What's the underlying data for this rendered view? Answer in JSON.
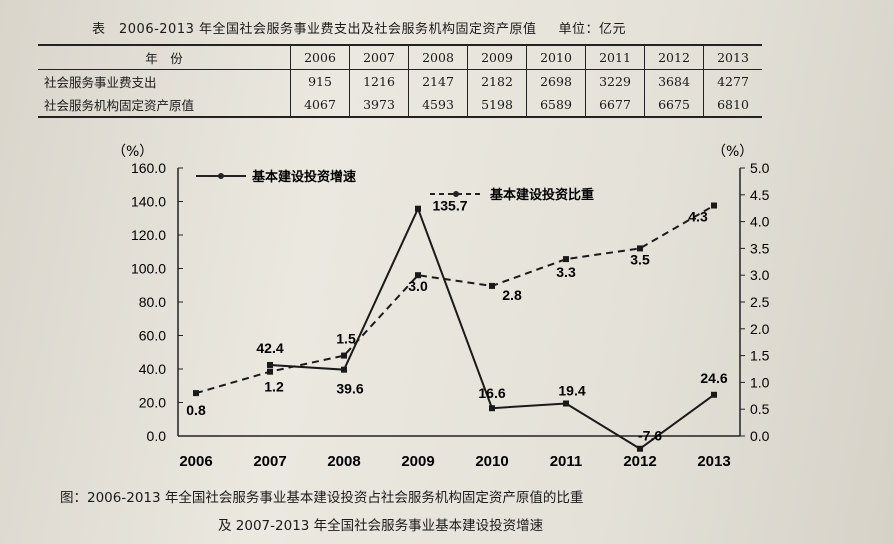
{
  "table": {
    "title": "表　2006-2013 年全国社会服务事业费支出及社会服务机构固定资产原值",
    "unit": "单位：亿元",
    "header_label": "年　份",
    "years": [
      "2006",
      "2007",
      "2008",
      "2009",
      "2010",
      "2011",
      "2012",
      "2013"
    ],
    "rows": [
      {
        "label": "社会服务事业费支出",
        "values": [
          "915",
          "1216",
          "2147",
          "2182",
          "2698",
          "3229",
          "3684",
          "4277"
        ]
      },
      {
        "label": "社会服务机构固定资产原值",
        "values": [
          "4067",
          "3973",
          "4593",
          "5198",
          "6589",
          "6677",
          "6675",
          "6810"
        ]
      }
    ]
  },
  "chart_data": {
    "type": "line",
    "categories": [
      "2006",
      "2007",
      "2008",
      "2009",
      "2010",
      "2011",
      "2012",
      "2013"
    ],
    "left_axis": {
      "label": "（%）",
      "min": 0,
      "max": 160,
      "ticks": [
        "0.0",
        "20.0",
        "40.0",
        "60.0",
        "80.0",
        "100.0",
        "120.0",
        "140.0",
        "160.0"
      ]
    },
    "right_axis": {
      "label": "（%）",
      "min": 0,
      "max": 5,
      "ticks": [
        "0.0",
        "0.5",
        "1.0",
        "1.5",
        "2.0",
        "2.5",
        "3.0",
        "3.5",
        "4.0",
        "4.5",
        "5.0"
      ]
    },
    "series": [
      {
        "name": "基本建设投资增速",
        "axis": "left",
        "style": "solid",
        "values": [
          null,
          42.4,
          39.6,
          135.7,
          16.6,
          19.4,
          -7.6,
          24.6
        ],
        "labels": [
          "",
          "42.4",
          "39.6",
          "135.7",
          "16.6",
          "19.4",
          "-7.6",
          "24.6"
        ]
      },
      {
        "name": "基本建设投资比重",
        "axis": "right",
        "style": "dashed",
        "values": [
          0.8,
          1.2,
          1.5,
          3.0,
          2.8,
          3.3,
          3.5,
          4.3
        ],
        "labels": [
          "0.8",
          "1.2",
          "1.5",
          "3.0",
          "2.8",
          "3.3",
          "3.5",
          "4.3"
        ]
      }
    ],
    "legend": "top-left"
  },
  "caption": {
    "line1": "图：2006-2013 年全国社会服务事业基本建设投资占社会服务机构固定资产原值的比重",
    "line2": "及 2007-2013 年全国社会服务事业基本建设投资增速"
  }
}
